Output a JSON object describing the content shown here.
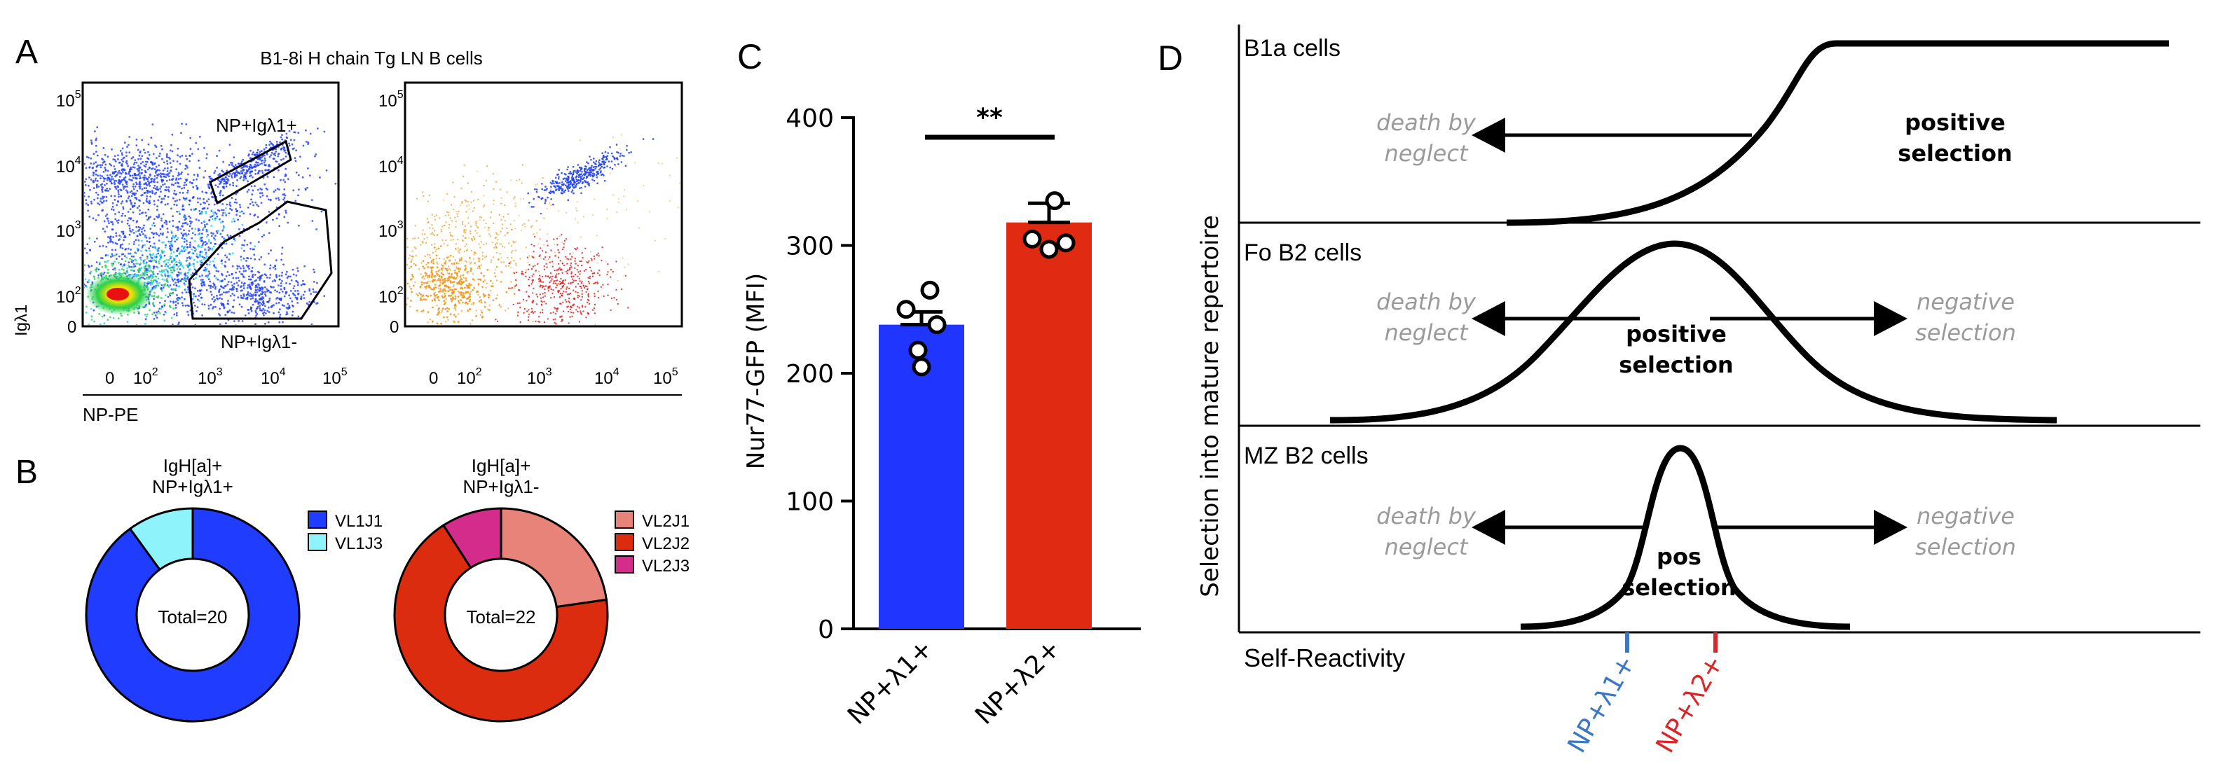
{
  "panel_letters": {
    "a": "A",
    "b": "B",
    "c": "C",
    "d": "D"
  },
  "panel_a": {
    "title": "B1-8i H chain Tg LN B cells",
    "y_label": "Igλ1",
    "x_label": "NP-PE",
    "gate_pos_label": "NP+Igλ1+",
    "gate_neg_label": "NP+Igλ1-",
    "y_ticks": [
      {
        "base": "10",
        "exp": "5"
      },
      {
        "base": "10",
        "exp": "4"
      },
      {
        "base": "10",
        "exp": "3"
      },
      {
        "base": "10",
        "exp": "2"
      },
      {
        "base": "0",
        "exp": ""
      }
    ],
    "x_ticks": [
      {
        "base": "0",
        "exp": ""
      },
      {
        "base": "10",
        "exp": "2"
      },
      {
        "base": "10",
        "exp": "3"
      },
      {
        "base": "10",
        "exp": "4"
      },
      {
        "base": "10",
        "exp": "5"
      }
    ],
    "colors": {
      "blue": "#1e3cff",
      "cyan": "#22d0e6",
      "green": "#2ad04a",
      "yellow": "#f5e400",
      "red": "#e81010",
      "orange": "#f09a20",
      "red_pop": "#d81818",
      "blue_pop": "#2244ee"
    }
  },
  "panel_b": {
    "donut1": {
      "title_line1": "IgH[a]+",
      "title_line2": "NP+Igλ1+",
      "center": "Total=20"
    },
    "donut2": {
      "title_line1": "IgH[a]+",
      "title_line2": "NP+Igλ1-",
      "center": "Total=22"
    },
    "legend1": [
      {
        "label": "VL1J1",
        "color": "#1f3cff"
      },
      {
        "label": "VL1J3",
        "color": "#8ff3fb"
      }
    ],
    "legend2": [
      {
        "label": "VL2J1",
        "color": "#e8837a"
      },
      {
        "label": "VL2J2",
        "color": "#dc2c10"
      },
      {
        "label": "VL2J3",
        "color": "#d42c8a"
      }
    ]
  },
  "chart_data": [
    {
      "type": "pie",
      "title": "IgH[a]+ NP+Igλ1+",
      "categories": [
        "VL1J1",
        "VL1J3"
      ],
      "values": [
        18,
        2
      ],
      "total_label": "Total=20"
    },
    {
      "type": "pie",
      "title": "IgH[a]+ NP+Igλ1-",
      "categories": [
        "VL2J1",
        "VL2J2",
        "VL2J3"
      ],
      "values": [
        5,
        15,
        2
      ],
      "total_label": "Total=22"
    },
    {
      "type": "bar",
      "ylabel": "Nur77-GFP (MFI)",
      "ylim": [
        0,
        400
      ],
      "y_ticks": [
        "0",
        "100",
        "200",
        "300",
        "400"
      ],
      "categories": [
        "NP+λ1+",
        "NP+λ2+"
      ],
      "colors": [
        "#2036ff",
        "#e02a12"
      ],
      "values": [
        238,
        318
      ],
      "sem": [
        10,
        15
      ],
      "points": [
        [
          265,
          250,
          238,
          218,
          205
        ],
        [
          335,
          305,
          302,
          297
        ]
      ],
      "significance": "**"
    }
  ],
  "panel_d": {
    "rows": [
      {
        "title": "B1a cells",
        "left": "death by neglect",
        "right": "",
        "center": "positive selection",
        "center_lines": [
          "positive",
          "selection"
        ]
      },
      {
        "title": "Fo B2 cells",
        "left": "death by neglect",
        "right": "negative selection",
        "center": "positive selection",
        "center_lines": [
          "positive",
          "selection"
        ]
      },
      {
        "title": "MZ B2 cells",
        "left": "death by neglect",
        "right": "negative selection",
        "center": "pos selection",
        "center_lines": [
          "pos",
          "selection"
        ]
      }
    ],
    "left_lines": [
      "death by",
      "neglect"
    ],
    "right_lines": [
      "negative",
      "selection"
    ],
    "y_label": "Selection into mature repertoire",
    "x_label": "Self-Reactivity",
    "markers": [
      {
        "label": "NP+λ1+",
        "color": "#3b78c4"
      },
      {
        "label": "NP+λ2+",
        "color": "#d8262a"
      }
    ]
  }
}
